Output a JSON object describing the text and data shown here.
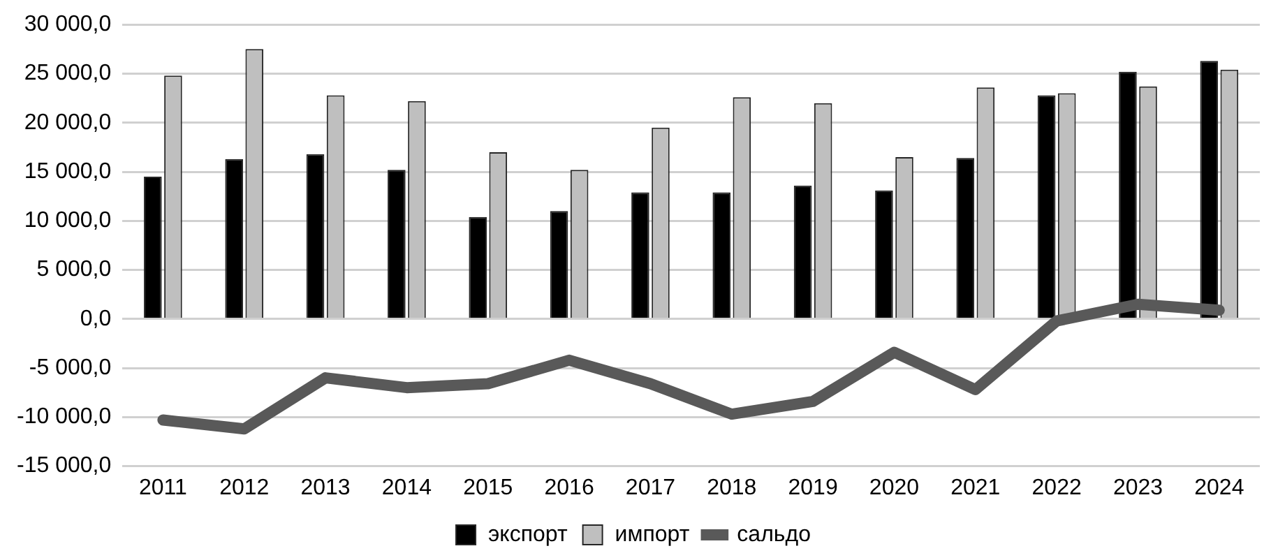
{
  "chart_data": {
    "type": "bar",
    "categories": [
      "2011",
      "2012",
      "2013",
      "2014",
      "2015",
      "2016",
      "2017",
      "2018",
      "2019",
      "2020",
      "2021",
      "2022",
      "2023",
      "2024"
    ],
    "series": [
      {
        "name": "экспорт",
        "color": "#000000",
        "values": [
          14500,
          16300,
          16800,
          15200,
          10400,
          11000,
          12900,
          12900,
          13600,
          13100,
          16400,
          22800,
          25200,
          26300
        ]
      },
      {
        "name": "импорт",
        "color": "#bfbfbf",
        "values": [
          24800,
          27500,
          22800,
          22200,
          17000,
          15200,
          19500,
          22600,
          22000,
          16500,
          23600,
          23000,
          23700,
          25400
        ]
      },
      {
        "name": "сальдо",
        "type": "line",
        "color": "#595959",
        "values": [
          -10300,
          -11200,
          -6000,
          -7000,
          -6600,
          -4200,
          -6600,
          -9700,
          -8400,
          -3400,
          -7200,
          -200,
          1500,
          900
        ]
      }
    ],
    "ylim": [
      -15000,
      30000
    ],
    "yticks": [
      {
        "value": -15000,
        "label": "-15 000,0"
      },
      {
        "value": -10000,
        "label": "-10 000,0"
      },
      {
        "value": -5000,
        "label": "-5 000,0"
      },
      {
        "value": 0,
        "label": "0,0"
      },
      {
        "value": 5000,
        "label": "5 000,0"
      },
      {
        "value": 10000,
        "label": "10 000,0"
      },
      {
        "value": 15000,
        "label": "15 000,0"
      },
      {
        "value": 20000,
        "label": "20 000,0"
      },
      {
        "value": 25000,
        "label": "25 000,0"
      },
      {
        "value": 30000,
        "label": "30 000,0"
      }
    ],
    "grid": "y",
    "legend": "bottom"
  }
}
